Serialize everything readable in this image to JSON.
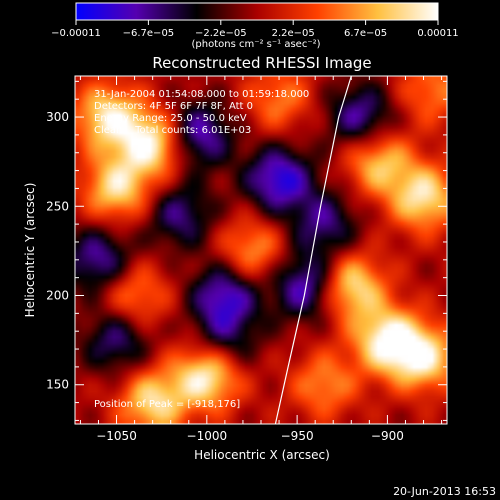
{
  "chart_data": {
    "type": "heatmap",
    "title": "Reconstructed RHESSI Image",
    "xlabel": "Heliocentric X (arcsec)",
    "ylabel": "Heliocentric Y (arcsec)",
    "xlim": [
      -1073,
      -867
    ],
    "ylim": [
      128,
      323
    ],
    "x_ticks": [
      -1050,
      -1000,
      -950,
      -900
    ],
    "x_tick_labels": [
      "−1050",
      "−1000",
      "−950",
      "−900"
    ],
    "y_ticks": [
      150,
      200,
      250,
      300
    ],
    "y_tick_labels": [
      "150",
      "200",
      "250",
      "300"
    ],
    "colorbar": {
      "tick_labels": [
        "−0.00011",
        "−6.7e−05",
        "−2.2e−05",
        "2.2e−05",
        "6.7e−05",
        "0.00011"
      ],
      "units_text": "(photons cm⁻² s⁻¹ asec⁻²)",
      "colormap": [
        "#0000ff",
        "#5500b0",
        "#000000",
        "#aa0000",
        "#ff4000",
        "#ffc040",
        "#ffffff"
      ]
    },
    "annotations": [
      "31-Jan-2004 01:54:08.000 to 01:59:18.000",
      "Detectors: 4F 5F 6F 7F 8F, Att 0",
      "Energy Range: 25.0 - 50.0 keV",
      "Clean    Total counts: 6.01E+03"
    ],
    "peak_label": "Position of Peak = [-918,176]",
    "limb_curve": [
      [
        -962,
        128
      ],
      [
        -955,
        160
      ],
      [
        -946,
        200
      ],
      [
        -937,
        250
      ],
      [
        -927,
        300
      ],
      [
        -920,
        323
      ]
    ],
    "hotspots": [
      {
        "x": -1000,
        "y": 155,
        "v": 1.0
      },
      {
        "x": -1030,
        "y": 140,
        "v": 0.85
      },
      {
        "x": -900,
        "y": 175,
        "v": 1.0
      },
      {
        "x": -880,
        "y": 165,
        "v": 0.9
      },
      {
        "x": -920,
        "y": 205,
        "v": 0.9
      },
      {
        "x": -1030,
        "y": 285,
        "v": 1.0
      },
      {
        "x": -1055,
        "y": 300,
        "v": 0.9
      },
      {
        "x": -1050,
        "y": 260,
        "v": 0.85
      },
      {
        "x": -880,
        "y": 255,
        "v": 0.9
      },
      {
        "x": -905,
        "y": 275,
        "v": 0.75
      },
      {
        "x": -975,
        "y": 225,
        "v": 0.6
      },
      {
        "x": -1040,
        "y": 200,
        "v": 0.55
      },
      {
        "x": -960,
        "y": 310,
        "v": 0.5
      },
      {
        "x": -875,
        "y": 315,
        "v": 0.5
      },
      {
        "x": -935,
        "y": 150,
        "v": 0.55
      },
      {
        "x": -990,
        "y": 200,
        "v": -0.8
      },
      {
        "x": -960,
        "y": 265,
        "v": -0.9
      },
      {
        "x": -1005,
        "y": 290,
        "v": -0.8
      },
      {
        "x": -1060,
        "y": 220,
        "v": -0.7
      },
      {
        "x": -945,
        "y": 205,
        "v": -0.8
      },
      {
        "x": -1050,
        "y": 175,
        "v": -0.6
      },
      {
        "x": -915,
        "y": 300,
        "v": -0.7
      },
      {
        "x": -1015,
        "y": 245,
        "v": -0.6
      },
      {
        "x": -990,
        "y": 175,
        "v": -0.5
      },
      {
        "x": -935,
        "y": 240,
        "v": -0.6
      }
    ]
  },
  "footer": {
    "timestamp": "20-Jun-2013 16:53"
  }
}
